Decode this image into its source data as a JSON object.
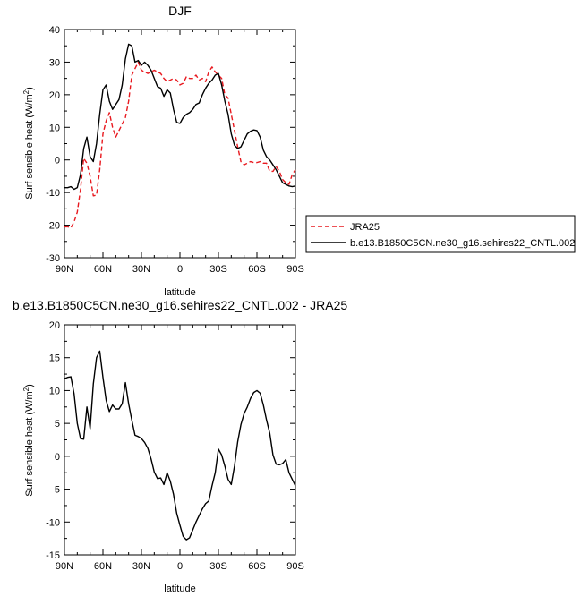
{
  "chart_data": [
    {
      "type": "line",
      "title": "DJF",
      "xlabel": "latitude",
      "ylabel_main": "Surf sensible heat (W/m",
      "ylabel_sup": "2",
      "ylabel_end": ")",
      "xlim": [
        90,
        -90
      ],
      "ylim": [
        -30,
        40
      ],
      "x_ticks": [
        90,
        60,
        30,
        0,
        -30,
        -60,
        -90
      ],
      "x_tick_labels": [
        "90N",
        "60N",
        "30N",
        "0",
        "30S",
        "60S",
        "90S"
      ],
      "y_ticks": [
        -30,
        -20,
        -10,
        0,
        10,
        20,
        30,
        40
      ],
      "y_tick_labels": [
        "-30",
        "-20",
        "-10",
        "0",
        "10",
        "20",
        "30",
        "40"
      ],
      "legend": {
        "position": "right",
        "entries": [
          "JRA25",
          "b.e13.B1850C5CN.ne30_g16.sehires22_CNTL.002"
        ]
      },
      "series": [
        {
          "name": "JRA25",
          "color": "#e8191f",
          "dash": "dashed",
          "x": [
            90,
            87.5,
            85,
            82.5,
            80,
            77.5,
            75,
            72.5,
            70,
            67.5,
            65,
            62.5,
            60,
            57.5,
            55,
            52.5,
            50,
            47.5,
            45,
            42.5,
            40,
            37.5,
            35,
            32.5,
            30,
            27.5,
            25,
            22.5,
            20,
            17.5,
            15,
            12.5,
            10,
            7.5,
            5,
            2.5,
            0,
            -2.5,
            -5,
            -7.5,
            -10,
            -12.5,
            -15,
            -17.5,
            -20,
            -22.5,
            -25,
            -27.5,
            -30,
            -32.5,
            -35,
            -37.5,
            -40,
            -42.5,
            -45,
            -47.5,
            -50,
            -52.5,
            -55,
            -57.5,
            -60,
            -62.5,
            -65,
            -67.5,
            -70,
            -72.5,
            -75,
            -77.5,
            -80,
            -82.5,
            -85,
            -87.5,
            -90
          ],
          "y": [
            -20.5,
            -20.5,
            -20.8,
            -19,
            -16,
            -9,
            0.5,
            -1,
            -5,
            -11,
            -10.8,
            -3,
            8,
            12,
            14.5,
            10,
            7,
            9,
            11,
            13,
            18,
            26,
            28,
            30,
            27.5,
            27,
            26.5,
            27,
            27.5,
            27,
            26.5,
            25,
            24,
            24.5,
            25,
            24.5,
            23,
            23.5,
            25.5,
            25,
            25,
            26,
            24.5,
            25,
            24,
            27,
            28.5,
            27,
            26,
            25,
            20,
            19,
            14,
            9,
            4,
            -0.5,
            -1.5,
            -1,
            -0.5,
            -0.8,
            -0.8,
            -0.5,
            -1,
            -1,
            -3.5,
            -3.5,
            -2,
            -3.5,
            -6,
            -7,
            -7.5,
            -4.5,
            -3
          ]
        },
        {
          "name": "b.e13.B1850C5CN.ne30_g16.sehires22_CNTL.002",
          "color": "#000000",
          "dash": "solid",
          "x": [
            90,
            87.5,
            85,
            82.5,
            80,
            77.5,
            75,
            72.5,
            70,
            67.5,
            65,
            62.5,
            60,
            57.5,
            55,
            52.5,
            50,
            47.5,
            45,
            42.5,
            40,
            37.5,
            35,
            32.5,
            30,
            27.5,
            25,
            22.5,
            20,
            17.5,
            15,
            12.5,
            10,
            7.5,
            5,
            2.5,
            0,
            -2.5,
            -5,
            -7.5,
            -10,
            -12.5,
            -15,
            -17.5,
            -20,
            -22.5,
            -25,
            -27.5,
            -30,
            -32.5,
            -35,
            -37.5,
            -40,
            -42.5,
            -45,
            -47.5,
            -50,
            -52.5,
            -55,
            -57.5,
            -60,
            -62.5,
            -65,
            -67.5,
            -70,
            -72.5,
            -75,
            -77.5,
            -80,
            -82.5,
            -85,
            -87.5,
            -90
          ],
          "y": [
            -8.5,
            -8.5,
            -8.2,
            -9,
            -8.5,
            -4.5,
            3.5,
            7,
            1,
            -0.5,
            5,
            14,
            21.5,
            23,
            18,
            15.5,
            17,
            18.5,
            23,
            31,
            35.5,
            35,
            30,
            30.5,
            29,
            30,
            29,
            27.5,
            25,
            22.5,
            22,
            19.5,
            21.5,
            20.5,
            15.5,
            11.5,
            11.2,
            13,
            14,
            14.5,
            15.5,
            17,
            17.5,
            20,
            22,
            23.5,
            24.5,
            26,
            26.5,
            23,
            18,
            14,
            8,
            4.5,
            3.5,
            4,
            6,
            8,
            8.8,
            9.2,
            9,
            7,
            3,
            1,
            0,
            -1.5,
            -3,
            -5,
            -7,
            -7.5,
            -8,
            -8.2,
            -8
          ]
        }
      ]
    },
    {
      "type": "line",
      "title": "b.e13.B1850C5CN.ne30_g16.sehires22_CNTL.002 - JRA25",
      "xlabel": "latitude",
      "ylabel_main": "Surf sensible heat (W/m",
      "ylabel_sup": "2",
      "ylabel_end": ")",
      "xlim": [
        90,
        -90
      ],
      "ylim": [
        -15,
        20
      ],
      "x_ticks": [
        90,
        60,
        30,
        0,
        -30,
        -60,
        -90
      ],
      "x_tick_labels": [
        "90N",
        "60N",
        "30N",
        "0",
        "30S",
        "60S",
        "90S"
      ],
      "y_ticks": [
        -15,
        -10,
        -5,
        0,
        5,
        10,
        15,
        20
      ],
      "y_tick_labels": [
        "-15",
        "-10",
        "-5",
        "0",
        "5",
        "10",
        "15",
        "20"
      ],
      "series": [
        {
          "color": "#000000",
          "dash": "solid",
          "x": [
            90,
            87.5,
            85,
            82.5,
            80,
            77.5,
            75,
            72.5,
            70,
            67.5,
            65,
            62.5,
            60,
            57.5,
            55,
            52.5,
            50,
            47.5,
            45,
            42.5,
            40,
            37.5,
            35,
            32.5,
            30,
            27.5,
            25,
            22.5,
            20,
            17.5,
            15,
            12.5,
            10,
            7.5,
            5,
            2.5,
            0,
            -2.5,
            -5,
            -7.5,
            -10,
            -12.5,
            -15,
            -17.5,
            -20,
            -22.5,
            -25,
            -27.5,
            -30,
            -32.5,
            -35,
            -37.5,
            -40,
            -42.5,
            -45,
            -47.5,
            -50,
            -52.5,
            -55,
            -57.5,
            -60,
            -62.5,
            -65,
            -67.5,
            -70,
            -72.5,
            -75,
            -77.5,
            -80,
            -82.5,
            -85,
            -87.5,
            -90
          ],
          "y": [
            11.8,
            12,
            12.1,
            9.5,
            5,
            2.7,
            2.6,
            7.5,
            4.2,
            11,
            15,
            16,
            12,
            8.5,
            6.8,
            7.8,
            7.2,
            7.2,
            8,
            11.2,
            8,
            5.5,
            3.2,
            3,
            2.7,
            2.1,
            1.2,
            -0.4,
            -2.4,
            -3.4,
            -3.3,
            -4.3,
            -2.5,
            -3.8,
            -5.8,
            -8.7,
            -10.5,
            -12.2,
            -12.7,
            -12.4,
            -11.2,
            -10,
            -9,
            -8,
            -7.2,
            -6.8,
            -4.5,
            -2.5,
            1.1,
            0.2,
            -1.5,
            -3.5,
            -4.3,
            -1.5,
            2.2,
            4.8,
            6.5,
            7.5,
            8.8,
            9.7,
            10,
            9.6,
            7.8,
            5.5,
            3.5,
            0.2,
            -1.2,
            -1.3,
            -1.1,
            -0.5,
            -2.5,
            -3.5,
            -4.5
          ]
        }
      ]
    }
  ]
}
